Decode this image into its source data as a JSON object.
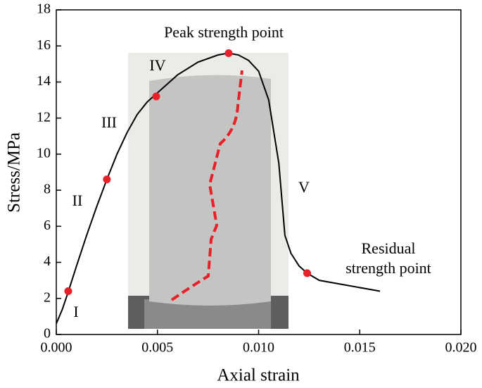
{
  "chart_data": {
    "type": "line",
    "x": [
      0,
      0.0003,
      0.0006,
      0.001,
      0.0015,
      0.002,
      0.0025,
      0.003,
      0.0035,
      0.004,
      0.0045,
      0.005,
      0.006,
      0.007,
      0.008,
      0.0085,
      0.009,
      0.0095,
      0.01,
      0.0105,
      0.011,
      0.0113,
      0.0116,
      0.012,
      0.0124,
      0.013,
      0.014,
      0.015,
      0.016
    ],
    "values": [
      0.6,
      1.4,
      2.4,
      3.8,
      5.5,
      7.1,
      8.6,
      10.0,
      11.2,
      12.2,
      12.9,
      13.4,
      14.4,
      15.1,
      15.5,
      15.6,
      15.5,
      15.2,
      14.6,
      13.0,
      9.5,
      5.5,
      4.5,
      3.8,
      3.4,
      3.0,
      2.8,
      2.6,
      2.4
    ],
    "color": "#000000",
    "points": {
      "x": [
        0.00059,
        0.0025,
        0.00494,
        0.00852,
        0.0124
      ],
      "values": [
        2.4,
        8.6,
        13.2,
        15.6,
        3.4
      ],
      "color": "#e8202a"
    },
    "annotations": [
      "I",
      "II",
      "III",
      "IV",
      "V",
      "Peak strength point",
      "Residual",
      "strength point"
    ],
    "x_label": "Axial strain",
    "y_label": "Stress/MPa",
    "xlim": [
      0,
      0.02
    ],
    "xticks": [
      {
        "value": 0,
        "label": "0.000"
      },
      {
        "value": 0.005,
        "label": "0.005"
      },
      {
        "value": 0.01,
        "label": "0.010"
      },
      {
        "value": 0.015,
        "label": "0.015"
      },
      {
        "value": 0.02,
        "label": "0.020"
      }
    ],
    "ylim": [
      0,
      18
    ],
    "yticks": [
      0,
      2,
      4,
      6,
      8,
      10,
      12,
      14,
      16,
      18
    ],
    "grid": false
  }
}
